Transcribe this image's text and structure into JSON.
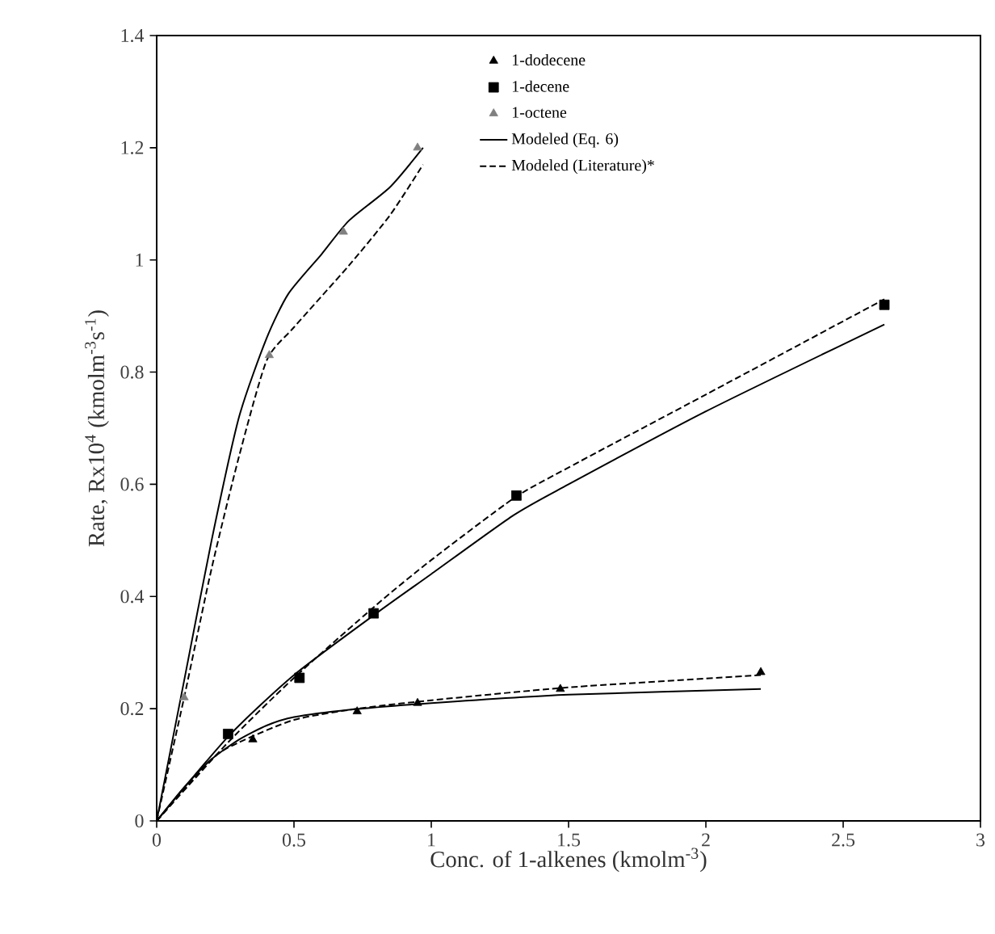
{
  "chart_data": {
    "type": "scatter",
    "xlabel": "Conc. of 1-alkenes (kmolm$^{-3}$)",
    "ylabel": "Rate, Rx10$^{4}$ (kmolm$^{-3}$s$^{-1}$)",
    "xlim": [
      0,
      3
    ],
    "xticks": [
      0,
      0.5,
      1,
      1.5,
      2,
      2.5,
      3
    ],
    "ylim": [
      0,
      1.4
    ],
    "yticks": [
      0,
      0.2,
      0.4,
      0.6,
      0.8,
      1,
      1.2,
      1.4
    ],
    "legend": "top",
    "grid": false,
    "series": [
      {
        "name": "1-dodecene",
        "marker": "triangle",
        "color": "#000000",
        "x": [
          0.35,
          0.73,
          0.95,
          1.47,
          2.2
        ],
        "values": [
          0.145,
          0.195,
          0.21,
          0.235,
          0.265
        ]
      },
      {
        "name": "1-decene",
        "marker": "square",
        "color": "#000000",
        "x": [
          0.26,
          0.52,
          0.79,
          1.31,
          2.65
        ],
        "values": [
          0.155,
          0.255,
          0.37,
          0.58,
          0.92
        ]
      },
      {
        "name": "1-octene",
        "marker": "triangle",
        "color": "#808080",
        "x": [
          0.1,
          0.41,
          0.68,
          0.95
        ],
        "values": [
          0.22,
          0.83,
          1.05,
          1.2
        ]
      },
      {
        "name": "Modeled (Eq. 6)",
        "type": "line",
        "line_style": "solid",
        "color": "#000000",
        "x": [
          0,
          0.1,
          0.2,
          0.3,
          0.4,
          0.48,
          0.6,
          0.7,
          0.85,
          0.97
        ],
        "values": [
          0,
          0.25,
          0.5,
          0.72,
          0.86,
          0.94,
          1.01,
          1.07,
          1.13,
          1.2
        ]
      },
      {
        "name": "Modeled (Literature)*",
        "type": "line",
        "line_style": "dashed",
        "color": "#000000",
        "x": [
          0,
          0.1,
          0.2,
          0.3,
          0.4,
          0.5,
          0.7,
          0.85,
          0.97
        ],
        "values": [
          0,
          0.22,
          0.45,
          0.65,
          0.82,
          0.88,
          0.99,
          1.08,
          1.17
        ]
      },
      {
        "type": "line",
        "line_style": "solid",
        "color": "#000000",
        "x": [
          0,
          0.26,
          0.5,
          0.8,
          1,
          1.3,
          1.5,
          2,
          2.65
        ],
        "values": [
          0,
          0.15,
          0.26,
          0.37,
          0.44,
          0.545,
          0.6,
          0.73,
          0.885
        ]
      },
      {
        "type": "line",
        "line_style": "dashed",
        "color": "#000000",
        "x": [
          0,
          0.26,
          0.5,
          0.8,
          1,
          1.3,
          1.5,
          2,
          2.65
        ],
        "values": [
          0,
          0.14,
          0.255,
          0.385,
          0.465,
          0.575,
          0.63,
          0.76,
          0.93
        ]
      },
      {
        "type": "line",
        "line_style": "solid",
        "color": "#000000",
        "x": [
          0,
          0.1,
          0.2,
          0.3,
          0.4,
          0.5,
          0.7,
          1,
          1.5,
          2.2
        ],
        "values": [
          0,
          0.06,
          0.11,
          0.145,
          0.17,
          0.185,
          0.198,
          0.21,
          0.225,
          0.235
        ]
      },
      {
        "type": "line",
        "line_style": "dashed",
        "color": "#000000",
        "x": [
          0,
          0.2,
          0.3,
          0.5,
          0.73,
          1,
          1.5,
          2.2
        ],
        "values": [
          0,
          0.11,
          0.14,
          0.18,
          0.2,
          0.215,
          0.238,
          0.26
        ]
      }
    ]
  }
}
